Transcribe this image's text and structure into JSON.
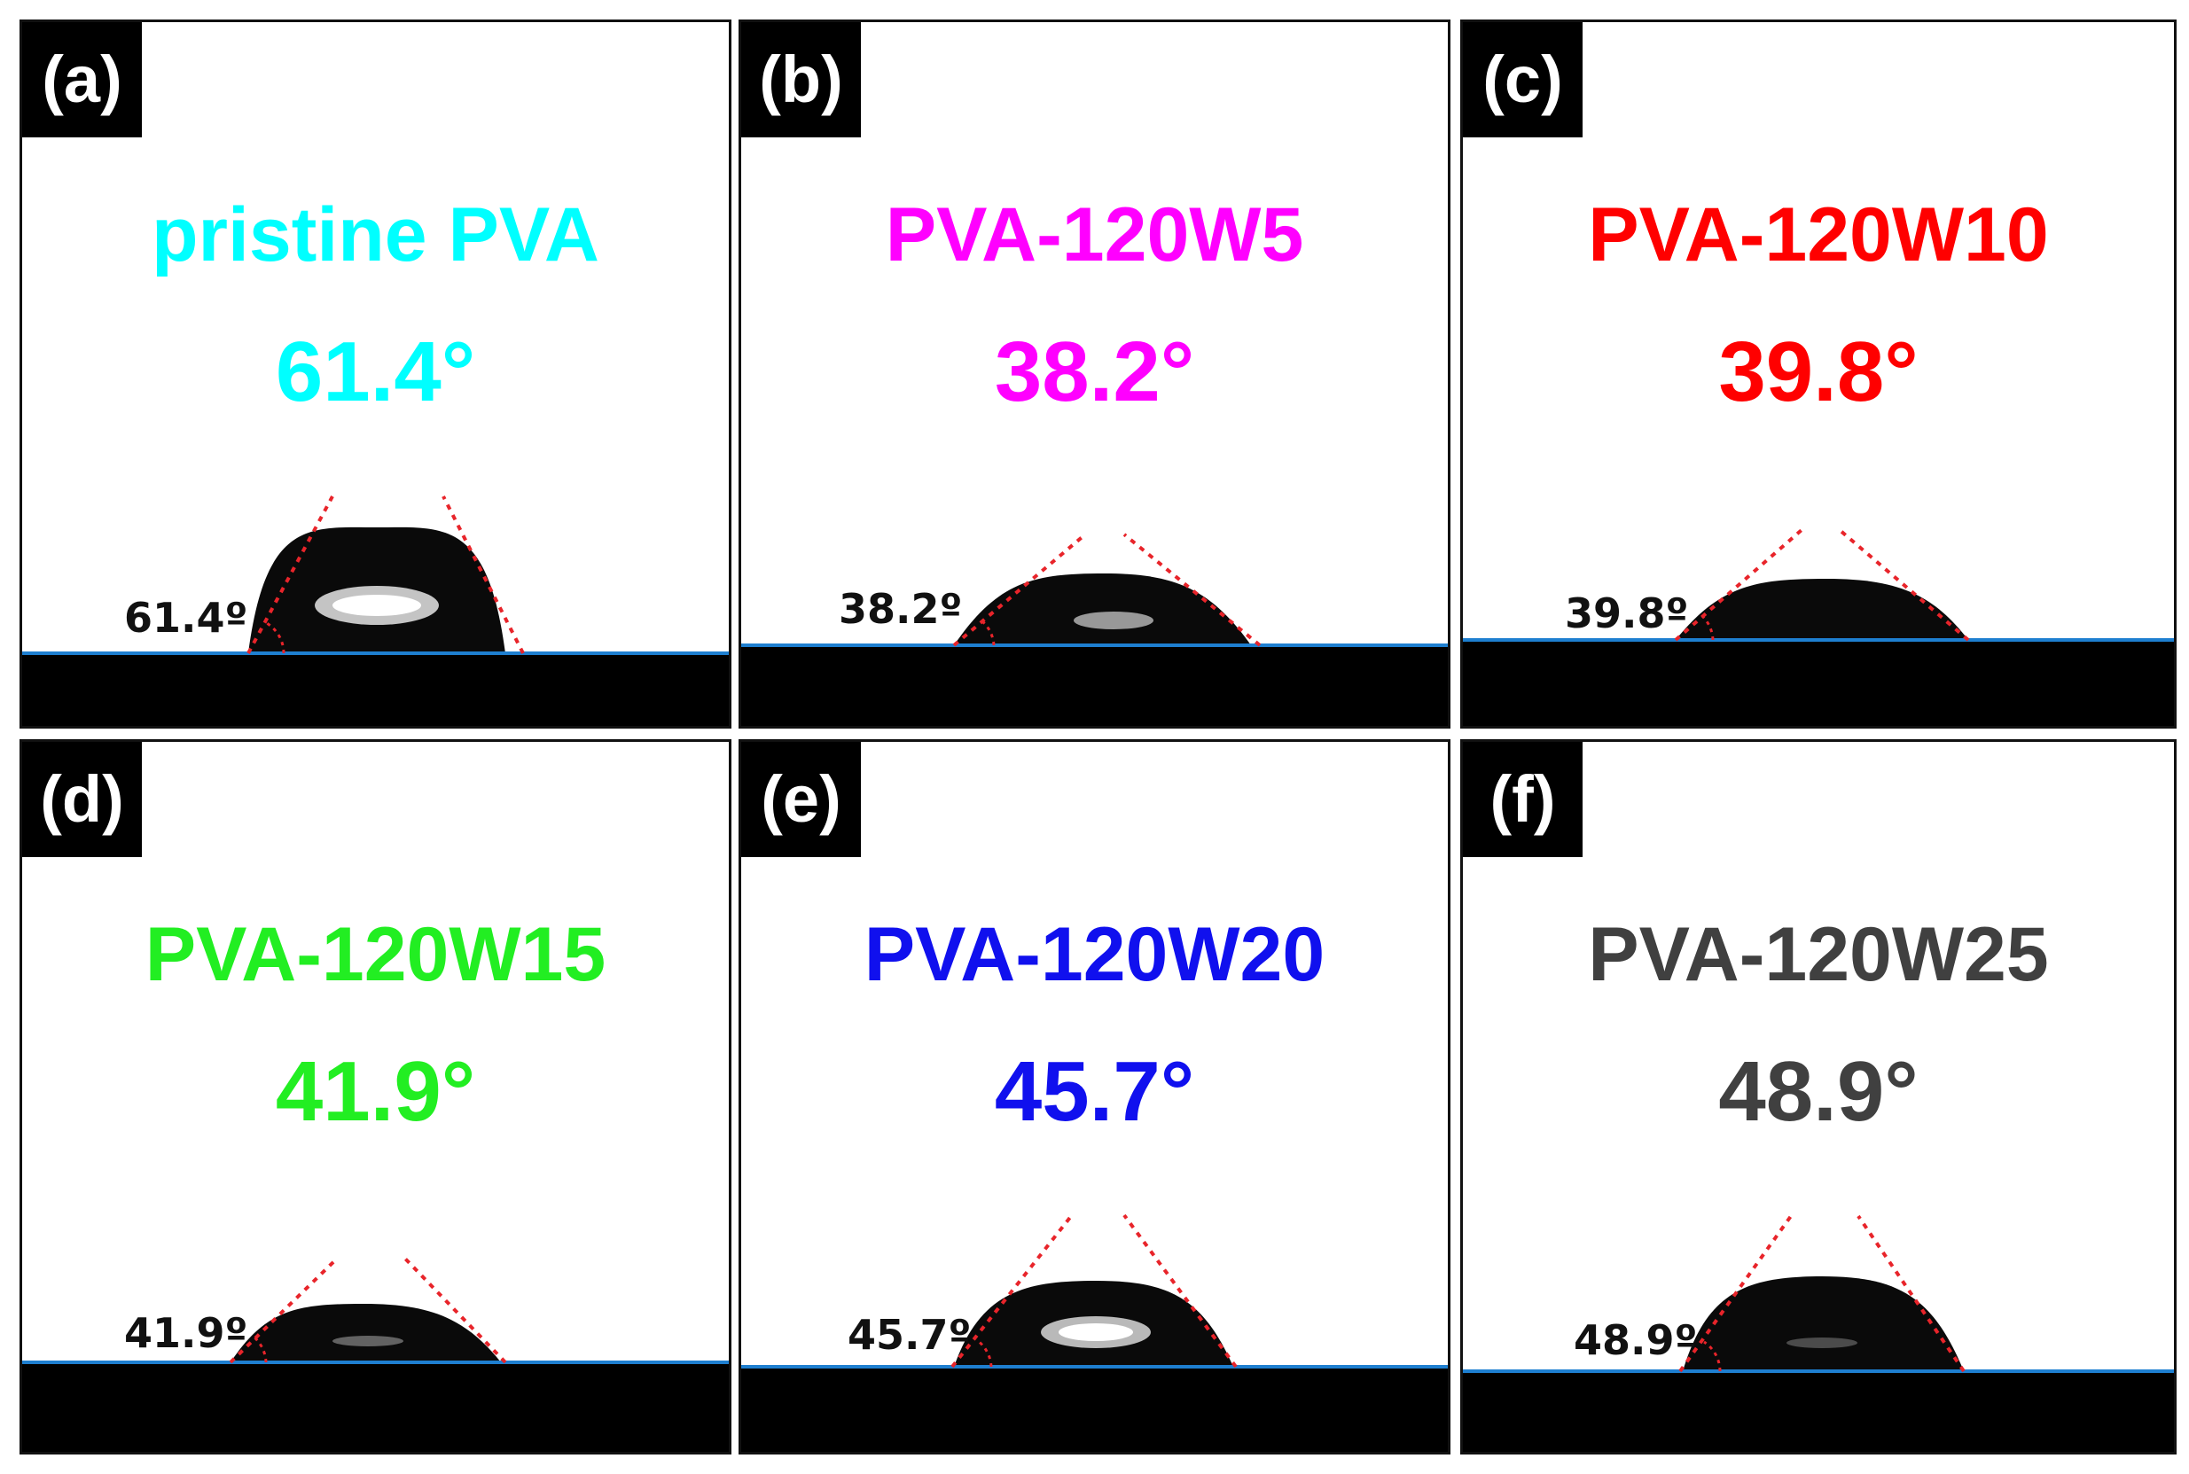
{
  "figure": {
    "panels": [
      {
        "letter": "(a)",
        "sample": "pristine PVA",
        "angle": "61.4°",
        "inset_label": "61.4º",
        "color": "#00FFFF"
      },
      {
        "letter": "(b)",
        "sample": "PVA-120W5",
        "angle": "38.2°",
        "inset_label": "38.2º",
        "color": "#FF00FF"
      },
      {
        "letter": "(c)",
        "sample": "PVA-120W10",
        "angle": "39.8°",
        "inset_label": "39.8º",
        "color": "#FF0000"
      },
      {
        "letter": "(d)",
        "sample": "PVA-120W15",
        "angle": "41.9°",
        "inset_label": "41.9º",
        "color": "#22EE22"
      },
      {
        "letter": "(e)",
        "sample": "PVA-120W20",
        "angle": "45.7°",
        "inset_label": "45.7º",
        "color": "#1010EE"
      },
      {
        "letter": "(f)",
        "sample": "PVA-120W25",
        "angle": "48.9°",
        "inset_label": "48.9º",
        "color": "#404040"
      }
    ],
    "colors": {
      "baseline": "#1E7FD0",
      "tangent": "#E8242A",
      "substrate": "#000000",
      "droplet": "#0A0A0A"
    }
  }
}
